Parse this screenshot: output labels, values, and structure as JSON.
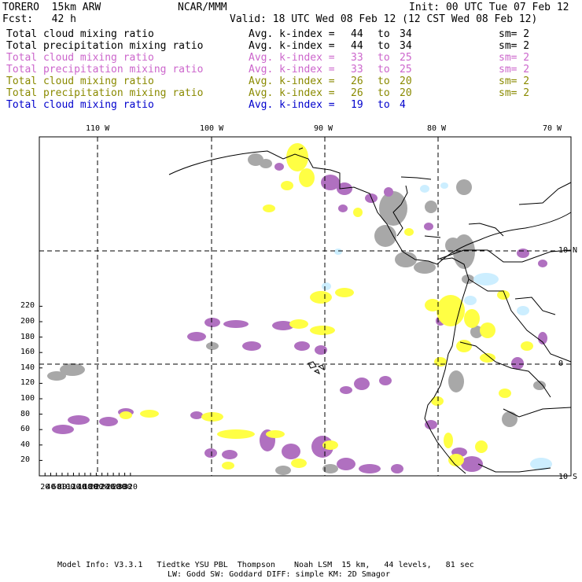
{
  "header": {
    "model": "TORERO  15km ARW",
    "org": "NCAR/MMM",
    "init": "Init: 00 UTC Tue 07 Feb 12",
    "fcst": "Fcst:   42 h",
    "valid": "Valid: 18 UTC Wed 08 Feb 12 (12 CST Wed 08 Feb 12)"
  },
  "legend": [
    {
      "field": "Total cloud mixing ratio",
      "kidx_label": "Avg. k-index =",
      "from": "44",
      "to_word": "to",
      "to": "34",
      "sm": "sm= 2",
      "color": "#000000"
    },
    {
      "field": "Total precipitation mixing ratio",
      "kidx_label": "Avg. k-index =",
      "from": "44",
      "to_word": "to",
      "to": "34",
      "sm": "sm= 2",
      "color": "#000000"
    },
    {
      "field": "Total cloud mixing ratio",
      "kidx_label": "Avg. k-index =",
      "from": "33",
      "to_word": "to",
      "to": "25",
      "sm": "sm= 2",
      "color": "#cc66cc"
    },
    {
      "field": "Total precipitation mixing ratio",
      "kidx_label": "Avg. k-index =",
      "from": "33",
      "to_word": "to",
      "to": "25",
      "sm": "sm= 2",
      "color": "#cc66cc"
    },
    {
      "field": "Total cloud mixing ratio",
      "kidx_label": "Avg. k-index =",
      "from": "26",
      "to_word": "to",
      "to": "20",
      "sm": "sm= 2",
      "color": "#8a8a00"
    },
    {
      "field": "Total precipitation mixing ratio",
      "kidx_label": "Avg. k-index =",
      "from": "26",
      "to_word": "to",
      "to": "20",
      "sm": "sm= 2",
      "color": "#8a8a00"
    },
    {
      "field": "Total cloud mixing ratio",
      "kidx_label": "Avg. k-index =",
      "from": "19",
      "to_word": "to",
      "to": "4",
      "sm": "",
      "color": "#0000cc"
    }
  ],
  "map": {
    "lon_labels": [
      "110 W",
      "100 W",
      "90 W",
      "80 W",
      "70 W"
    ],
    "lat_labels": [
      "10 N",
      "0",
      "10 S"
    ],
    "y_ticks": [
      "220",
      "200",
      "180",
      "160",
      "140",
      "120",
      "100",
      "80",
      "60",
      "40",
      "20"
    ],
    "x_ticks": [
      "20",
      "40",
      "60",
      "80",
      "100",
      "120",
      "140",
      "160",
      "180",
      "200",
      "220",
      "240",
      "260",
      "280",
      "300",
      "320"
    ],
    "colors": {
      "gray": "#a8a8a8",
      "purple": "#b070c0",
      "yellow": "#ffff44",
      "lightblue": "#cceeff",
      "coast": "#000000",
      "frame": "#000000"
    }
  },
  "footer": {
    "line1": "Model Info: V3.3.1   Tiedtke YSU PBL  Thompson    Noah LSM  15 km,   44 levels,   81 sec",
    "line2": "LW: Godd SW: Goddard DIFF: simple KM: 2D Smagor"
  }
}
